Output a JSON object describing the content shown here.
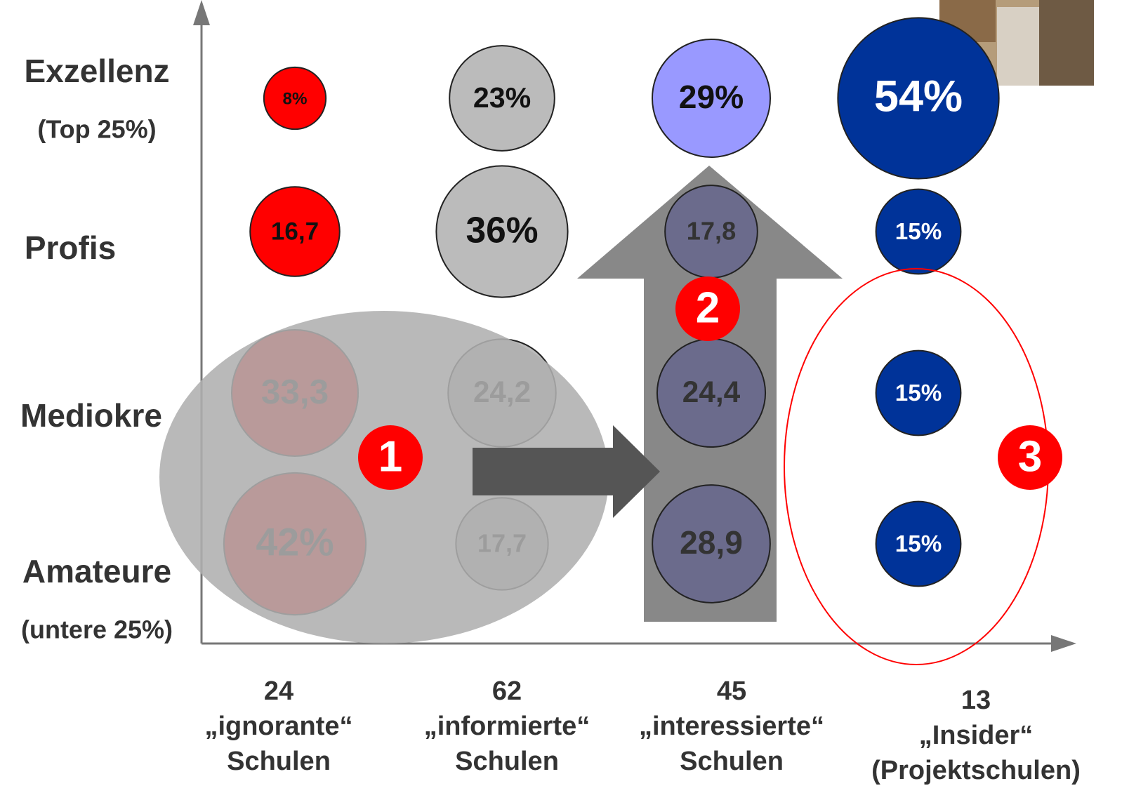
{
  "chart_data": {
    "type": "bubble-grid",
    "rows": [
      {
        "label": "Amateure",
        "note": "(untere 25%)"
      },
      {
        "label": "Mediokre"
      },
      {
        "label": "Profis"
      },
      {
        "label": "Exzellenz",
        "note": "(Top 25%)"
      }
    ],
    "columns": [
      {
        "count": 24,
        "name": "„ignorante“",
        "sub": "Schulen"
      },
      {
        "count": 62,
        "name": "„informierte“",
        "sub": "Schulen"
      },
      {
        "count": 45,
        "name": "„interessierte“",
        "sub": "Schulen"
      },
      {
        "count": 13,
        "name": "„Insider“",
        "sub": "(Projektschulen)"
      }
    ],
    "series": [
      {
        "colors": [
          "#ff0000",
          "#ff0000",
          "#ff0000",
          "#ff0000"
        ],
        "values": [
          42,
          33.3,
          16.7,
          8
        ],
        "value_labels": [
          "42%",
          "33,3",
          "16,7",
          "8%"
        ]
      },
      {
        "colors": [
          "#bbbbbb",
          "#bbbbbb",
          "#bbbbbb",
          "#bbbbbb"
        ],
        "values": [
          17.7,
          24.2,
          36,
          23
        ],
        "value_labels": [
          "17,7",
          "24,2",
          "36%",
          "23%"
        ]
      },
      {
        "colors": [
          "#6b6b8c",
          "#6b6b8c",
          "#6b6b8c",
          "#9999ff"
        ],
        "values": [
          28.9,
          24.4,
          17.8,
          29
        ],
        "value_labels": [
          "28,9",
          "24,4",
          "17,8",
          "29%"
        ]
      },
      {
        "colors": [
          "#003399",
          "#003399",
          "#003399",
          "#003399"
        ],
        "values": [
          15,
          15,
          15,
          54
        ],
        "value_labels": [
          "15%",
          "15%",
          "15%",
          "54%"
        ]
      }
    ],
    "annotations": [
      "1",
      "2",
      "3"
    ]
  }
}
